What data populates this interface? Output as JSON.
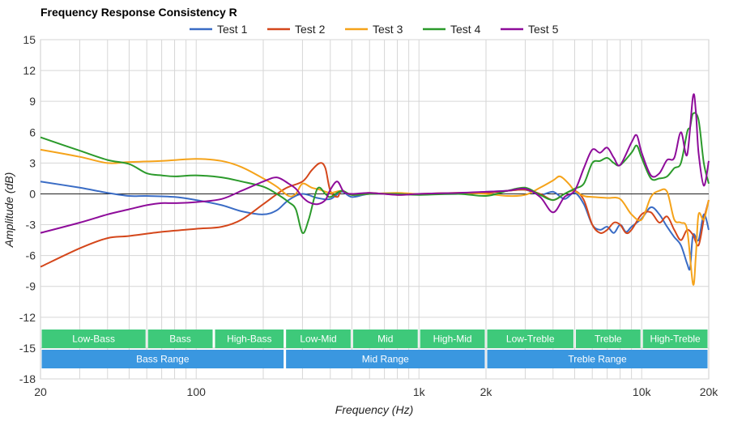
{
  "chart_data": {
    "type": "line",
    "title": "Frequency Response Consistency R",
    "xlabel": "Frequency (Hz)",
    "ylabel": "Amplitude (dB)",
    "x_scale": "log",
    "xlim": [
      20,
      20000
    ],
    "ylim": [
      -18,
      15
    ],
    "x_ticks": [
      20,
      100,
      1000,
      2000,
      10000,
      20000
    ],
    "x_tick_labels": [
      "20",
      "100",
      "1k",
      "2k",
      "10k",
      "20k"
    ],
    "y_ticks": [
      -18,
      -15,
      -12,
      -9,
      -6,
      -3,
      0,
      3,
      6,
      9,
      12,
      15
    ],
    "grid": true,
    "legend_position": "top",
    "series": [
      {
        "name": "Test 1",
        "color": "#3a6cc5",
        "points": [
          [
            20,
            1.2
          ],
          [
            30,
            0.6
          ],
          [
            40,
            0.1
          ],
          [
            50,
            -0.2
          ],
          [
            60,
            -0.2
          ],
          [
            80,
            -0.3
          ],
          [
            100,
            -0.6
          ],
          [
            130,
            -1.1
          ],
          [
            160,
            -1.7
          ],
          [
            200,
            -2.0
          ],
          [
            230,
            -1.6
          ],
          [
            260,
            -0.6
          ],
          [
            300,
            0.0
          ],
          [
            350,
            -0.4
          ],
          [
            400,
            -0.5
          ],
          [
            450,
            0.2
          ],
          [
            500,
            -0.3
          ],
          [
            600,
            0.0
          ],
          [
            800,
            0.0
          ],
          [
            1000,
            0.0
          ],
          [
            1500,
            0.0
          ],
          [
            2000,
            0.2
          ],
          [
            2500,
            0.3
          ],
          [
            3000,
            0.4
          ],
          [
            3500,
            -0.1
          ],
          [
            4000,
            0.2
          ],
          [
            4500,
            -0.5
          ],
          [
            5000,
            0.1
          ],
          [
            5500,
            -1.0
          ],
          [
            6000,
            -3.0
          ],
          [
            6500,
            -3.5
          ],
          [
            7000,
            -3.2
          ],
          [
            7500,
            -3.8
          ],
          [
            8000,
            -3.0
          ],
          [
            8500,
            -3.7
          ],
          [
            9000,
            -3.2
          ],
          [
            10000,
            -2.4
          ],
          [
            11000,
            -1.3
          ],
          [
            12000,
            -2.0
          ],
          [
            13000,
            -3.2
          ],
          [
            14000,
            -4.2
          ],
          [
            15000,
            -5.0
          ],
          [
            16000,
            -6.8
          ],
          [
            16500,
            -7.2
          ],
          [
            17000,
            -4.0
          ],
          [
            18000,
            -4.5
          ],
          [
            19000,
            -2.0
          ],
          [
            20000,
            -3.5
          ]
        ]
      },
      {
        "name": "Test 2",
        "color": "#d4471b",
        "points": [
          [
            20,
            -7.1
          ],
          [
            30,
            -5.3
          ],
          [
            40,
            -4.3
          ],
          [
            50,
            -4.1
          ],
          [
            70,
            -3.7
          ],
          [
            100,
            -3.4
          ],
          [
            130,
            -3.2
          ],
          [
            160,
            -2.5
          ],
          [
            200,
            -1.0
          ],
          [
            250,
            0.5
          ],
          [
            300,
            1.2
          ],
          [
            330,
            2.3
          ],
          [
            360,
            3.0
          ],
          [
            380,
            2.5
          ],
          [
            400,
            0.3
          ],
          [
            430,
            -0.3
          ],
          [
            450,
            0.3
          ],
          [
            500,
            -0.1
          ],
          [
            600,
            0.1
          ],
          [
            800,
            -0.1
          ],
          [
            1000,
            0.0
          ],
          [
            1500,
            0.1
          ],
          [
            2000,
            0.1
          ],
          [
            2500,
            0.3
          ],
          [
            3000,
            0.4
          ],
          [
            3500,
            0.0
          ],
          [
            4000,
            -0.6
          ],
          [
            4500,
            0.0
          ],
          [
            5000,
            0.3
          ],
          [
            5500,
            -0.6
          ],
          [
            6000,
            -3.0
          ],
          [
            6500,
            -3.8
          ],
          [
            7000,
            -3.5
          ],
          [
            7500,
            -2.8
          ],
          [
            8000,
            -3.0
          ],
          [
            8500,
            -3.8
          ],
          [
            9000,
            -3.5
          ],
          [
            10000,
            -2.0
          ],
          [
            11000,
            -1.8
          ],
          [
            12000,
            -2.8
          ],
          [
            13000,
            -2.2
          ],
          [
            14000,
            -3.5
          ],
          [
            15000,
            -4.5
          ],
          [
            16000,
            -3.5
          ],
          [
            17000,
            -4.0
          ],
          [
            18000,
            -5.0
          ],
          [
            19000,
            -2.5
          ],
          [
            20000,
            -0.6
          ]
        ]
      },
      {
        "name": "Test 3",
        "color": "#f5a31a",
        "points": [
          [
            20,
            4.3
          ],
          [
            30,
            3.6
          ],
          [
            40,
            3.0
          ],
          [
            50,
            3.1
          ],
          [
            70,
            3.2
          ],
          [
            100,
            3.4
          ],
          [
            130,
            3.2
          ],
          [
            160,
            2.6
          ],
          [
            200,
            1.5
          ],
          [
            230,
            0.7
          ],
          [
            260,
            -0.2
          ],
          [
            280,
            0.0
          ],
          [
            300,
            1.0
          ],
          [
            330,
            0.6
          ],
          [
            360,
            0.4
          ],
          [
            400,
            0.1
          ],
          [
            450,
            0.3
          ],
          [
            500,
            -0.1
          ],
          [
            600,
            0.0
          ],
          [
            800,
            0.1
          ],
          [
            1000,
            0.0
          ],
          [
            1500,
            0.1
          ],
          [
            2000,
            0.0
          ],
          [
            2500,
            -0.2
          ],
          [
            3000,
            -0.1
          ],
          [
            3500,
            0.6
          ],
          [
            4000,
            1.3
          ],
          [
            4300,
            1.7
          ],
          [
            4700,
            1.0
          ],
          [
            5000,
            0.3
          ],
          [
            5500,
            -0.2
          ],
          [
            6000,
            -0.3
          ],
          [
            7000,
            -0.4
          ],
          [
            8000,
            -0.5
          ],
          [
            9000,
            -2.0
          ],
          [
            10000,
            -2.5
          ],
          [
            11000,
            -0.3
          ],
          [
            12000,
            0.3
          ],
          [
            13000,
            0.2
          ],
          [
            14000,
            -2.5
          ],
          [
            15000,
            -2.8
          ],
          [
            16000,
            -3.5
          ],
          [
            17000,
            -8.8
          ],
          [
            17500,
            -6.0
          ],
          [
            18000,
            -2.0
          ],
          [
            19000,
            -2.5
          ],
          [
            20000,
            -0.6
          ]
        ]
      },
      {
        "name": "Test 4",
        "color": "#2b9a2b",
        "points": [
          [
            20,
            5.5
          ],
          [
            30,
            4.2
          ],
          [
            40,
            3.3
          ],
          [
            50,
            2.9
          ],
          [
            60,
            2.0
          ],
          [
            70,
            1.8
          ],
          [
            80,
            1.7
          ],
          [
            100,
            1.8
          ],
          [
            130,
            1.6
          ],
          [
            160,
            1.2
          ],
          [
            200,
            0.7
          ],
          [
            230,
            0.0
          ],
          [
            260,
            -0.8
          ],
          [
            280,
            -1.5
          ],
          [
            300,
            -3.8
          ],
          [
            320,
            -2.5
          ],
          [
            350,
            0.5
          ],
          [
            380,
            0.0
          ],
          [
            400,
            -0.3
          ],
          [
            450,
            0.3
          ],
          [
            500,
            -0.1
          ],
          [
            600,
            0.0
          ],
          [
            800,
            0.0
          ],
          [
            1000,
            -0.1
          ],
          [
            1500,
            0.0
          ],
          [
            2000,
            -0.2
          ],
          [
            2500,
            0.3
          ],
          [
            3000,
            0.6
          ],
          [
            3500,
            -0.1
          ],
          [
            4000,
            -0.6
          ],
          [
            4500,
            0.0
          ],
          [
            5000,
            0.5
          ],
          [
            5500,
            1.0
          ],
          [
            6000,
            3.0
          ],
          [
            6500,
            3.2
          ],
          [
            7000,
            3.5
          ],
          [
            7500,
            3.0
          ],
          [
            8000,
            2.8
          ],
          [
            9000,
            4.0
          ],
          [
            9500,
            4.7
          ],
          [
            10000,
            3.5
          ],
          [
            11000,
            1.5
          ],
          [
            12000,
            1.5
          ],
          [
            13000,
            1.7
          ],
          [
            14000,
            2.5
          ],
          [
            15000,
            3.0
          ],
          [
            16000,
            6.0
          ],
          [
            16500,
            6.5
          ],
          [
            17000,
            7.8
          ],
          [
            18000,
            7.2
          ],
          [
            19000,
            3.0
          ],
          [
            20000,
            1.0
          ]
        ]
      },
      {
        "name": "Test 5",
        "color": "#8e0c9a",
        "points": [
          [
            20,
            -3.8
          ],
          [
            30,
            -2.8
          ],
          [
            40,
            -2.0
          ],
          [
            50,
            -1.5
          ],
          [
            60,
            -1.1
          ],
          [
            70,
            -0.9
          ],
          [
            80,
            -0.9
          ],
          [
            100,
            -0.8
          ],
          [
            130,
            -0.5
          ],
          [
            160,
            0.3
          ],
          [
            200,
            1.2
          ],
          [
            230,
            1.6
          ],
          [
            260,
            1.0
          ],
          [
            280,
            0.5
          ],
          [
            300,
            -0.3
          ],
          [
            320,
            -0.8
          ],
          [
            350,
            -1.0
          ],
          [
            380,
            -0.6
          ],
          [
            400,
            0.4
          ],
          [
            430,
            1.2
          ],
          [
            460,
            0.2
          ],
          [
            500,
            0.0
          ],
          [
            600,
            0.1
          ],
          [
            800,
            -0.1
          ],
          [
            1000,
            0.0
          ],
          [
            1500,
            0.1
          ],
          [
            2000,
            0.2
          ],
          [
            2500,
            0.3
          ],
          [
            3000,
            0.5
          ],
          [
            3500,
            -0.3
          ],
          [
            4000,
            -1.8
          ],
          [
            4500,
            -0.3
          ],
          [
            5000,
            0.3
          ],
          [
            5500,
            2.5
          ],
          [
            6000,
            4.3
          ],
          [
            6500,
            4.0
          ],
          [
            7000,
            4.5
          ],
          [
            7500,
            3.5
          ],
          [
            8000,
            2.8
          ],
          [
            9000,
            5.0
          ],
          [
            9500,
            5.7
          ],
          [
            10000,
            4.0
          ],
          [
            11000,
            1.8
          ],
          [
            12000,
            2.0
          ],
          [
            13000,
            3.3
          ],
          [
            14000,
            3.5
          ],
          [
            15000,
            6.0
          ],
          [
            16000,
            3.8
          ],
          [
            17000,
            9.5
          ],
          [
            17500,
            8.0
          ],
          [
            18000,
            4.0
          ],
          [
            19000,
            0.8
          ],
          [
            20000,
            3.2
          ]
        ]
      }
    ],
    "bands_upper": [
      {
        "label": "Low-Bass",
        "from": 20,
        "to": 60
      },
      {
        "label": "Bass",
        "from": 60,
        "to": 120
      },
      {
        "label": "High-Bass",
        "from": 120,
        "to": 250
      },
      {
        "label": "Low-Mid",
        "from": 250,
        "to": 500
      },
      {
        "label": "Mid",
        "from": 500,
        "to": 1000
      },
      {
        "label": "High-Mid",
        "from": 1000,
        "to": 2000
      },
      {
        "label": "Low-Treble",
        "from": 2000,
        "to": 5000
      },
      {
        "label": "Treble",
        "from": 5000,
        "to": 10000
      },
      {
        "label": "High-Treble",
        "from": 10000,
        "to": 20000
      }
    ],
    "bands_lower": [
      {
        "label": "Bass Range",
        "from": 20,
        "to": 250
      },
      {
        "label": "Mid Range",
        "from": 250,
        "to": 2000
      },
      {
        "label": "Treble Range",
        "from": 2000,
        "to": 20000
      }
    ],
    "band_colors": {
      "upper": "#3ec97a",
      "lower": "#3a97e0"
    }
  }
}
